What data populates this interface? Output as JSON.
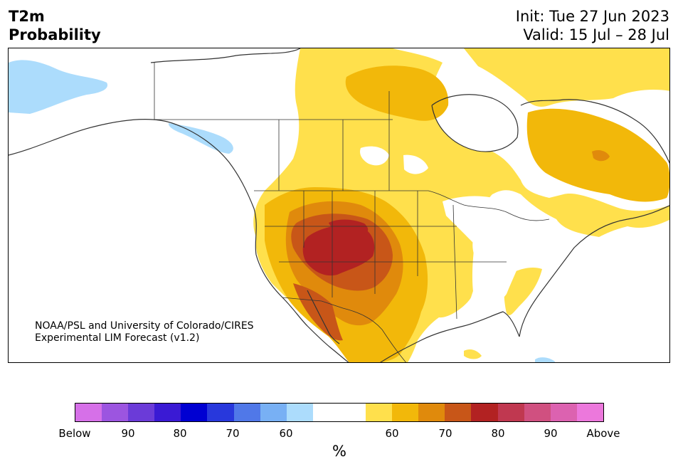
{
  "header": {
    "title_line1": "T2m",
    "title_line2": "Probability",
    "init": "Init: Tue 27 Jun 2023",
    "valid": "Valid: 15 Jul – 28 Jul"
  },
  "credit": {
    "line1": "NOAA/PSL and University of Colorado/CIRES",
    "line2": "Experimental LIM Forecast (v1.2)"
  },
  "colorbar": {
    "colors": [
      "#d670e8",
      "#9c55e0",
      "#6b3bd8",
      "#3a1ad4",
      "#0000d2",
      "#2838dc",
      "#5078e8",
      "#78b0f4",
      "#acdcfc",
      "#ffffff",
      "#ffffff",
      "#ffe04c",
      "#f2b80a",
      "#e08a0c",
      "#c85618",
      "#b22222",
      "#c03850",
      "#d05080",
      "#dc62b0",
      "#ec78dc"
    ],
    "ticks": [
      "Below",
      "90",
      "80",
      "70",
      "60",
      "60",
      "70",
      "80",
      "90",
      "Above"
    ],
    "unit": "%"
  },
  "map": {
    "region": "North America",
    "colors": {
      "land": "#ffffff",
      "border": "#333333",
      "above_50": "#ffe04c",
      "above_60": "#f2b80a",
      "above_70": "#e08a0c",
      "above_80": "#c85618",
      "above_90": "#b22222",
      "below_50": "#acdcfc"
    }
  }
}
